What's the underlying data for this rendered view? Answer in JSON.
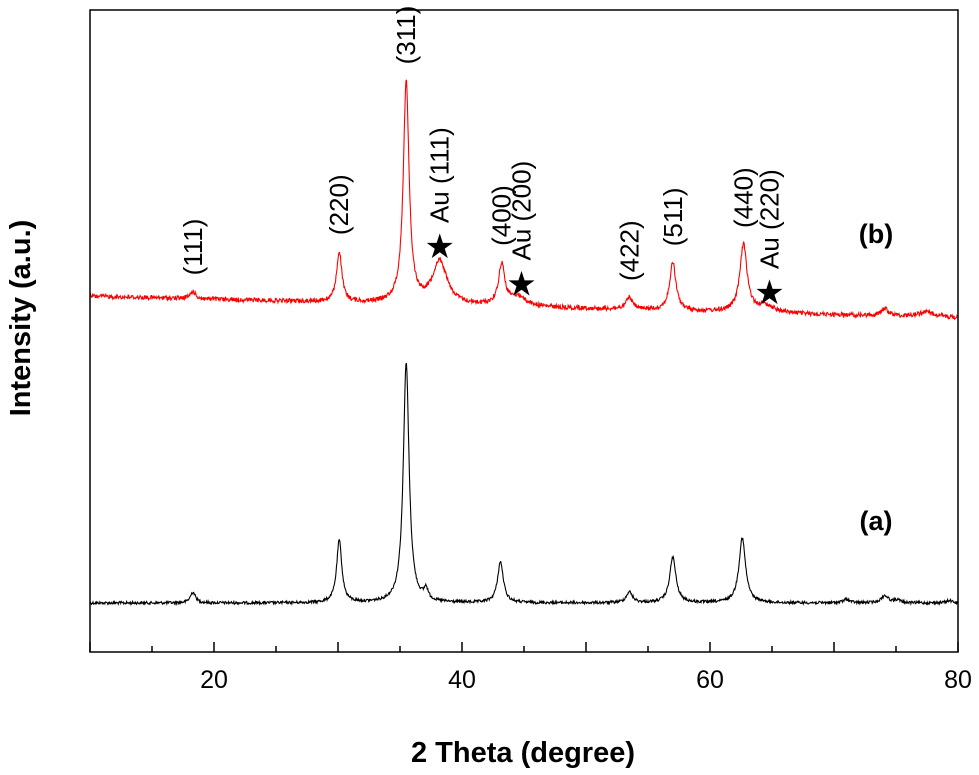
{
  "chart_data": {
    "type": "line",
    "xlabel": "2 Theta (degree)",
    "ylabel": "Intensity (a.u.)",
    "xlim": [
      10,
      80
    ],
    "xticks": [
      20,
      40,
      60,
      80
    ],
    "yaxis_ticks": false,
    "grid": false,
    "series": [
      {
        "name": "(a)",
        "color": "#000000",
        "baseline": 0.0,
        "peaks": [
          {
            "x": 18.3,
            "h": 0.045,
            "w": 0.25
          },
          {
            "x": 30.1,
            "h": 0.26,
            "w": 0.25
          },
          {
            "x": 35.5,
            "h": 1.0,
            "w": 0.28
          },
          {
            "x": 37.1,
            "h": 0.045,
            "w": 0.2
          },
          {
            "x": 43.1,
            "h": 0.17,
            "w": 0.28
          },
          {
            "x": 53.5,
            "h": 0.045,
            "w": 0.3
          },
          {
            "x": 57.0,
            "h": 0.19,
            "w": 0.3
          },
          {
            "x": 62.6,
            "h": 0.27,
            "w": 0.32
          },
          {
            "x": 71.0,
            "h": 0.015,
            "w": 0.3
          },
          {
            "x": 74.1,
            "h": 0.03,
            "w": 0.35
          },
          {
            "x": 75.1,
            "h": 0.012,
            "w": 0.3
          },
          {
            "x": 79.3,
            "h": 0.01,
            "w": 0.3
          }
        ]
      },
      {
        "name": "(b)",
        "color": "#ff0000",
        "baseline": 1.02,
        "baseline_slope": -0.0013,
        "peaks": [
          {
            "x": 18.3,
            "h": 0.03,
            "w": 0.25
          },
          {
            "x": 30.1,
            "h": 0.21,
            "w": 0.25
          },
          {
            "x": 35.5,
            "h": 0.92,
            "w": 0.28
          },
          {
            "x": 38.2,
            "h": 0.18,
            "w": 0.7
          },
          {
            "x": 43.2,
            "h": 0.17,
            "w": 0.3
          },
          {
            "x": 44.5,
            "h": 0.04,
            "w": 0.8
          },
          {
            "x": 53.5,
            "h": 0.05,
            "w": 0.3
          },
          {
            "x": 57.0,
            "h": 0.2,
            "w": 0.3
          },
          {
            "x": 62.7,
            "h": 0.28,
            "w": 0.35
          },
          {
            "x": 64.5,
            "h": 0.03,
            "w": 0.8
          },
          {
            "x": 74.1,
            "h": 0.03,
            "w": 0.35
          },
          {
            "x": 77.5,
            "h": 0.02,
            "w": 1.0
          }
        ]
      }
    ],
    "annotations": [
      {
        "text": "(111)",
        "x": 18.3,
        "rotated": true
      },
      {
        "text": "(220)",
        "x": 30.1,
        "rotated": true
      },
      {
        "text": "(311)",
        "x": 35.5,
        "rotated": true
      },
      {
        "text": "Au (111)",
        "x": 38.2,
        "rotated": true,
        "star": true
      },
      {
        "text": "(400)",
        "x": 43.2,
        "rotated": true
      },
      {
        "text": "Au (200)",
        "x": 44.8,
        "rotated": true,
        "star": true
      },
      {
        "text": "(422)",
        "x": 53.5,
        "rotated": true
      },
      {
        "text": "(511)",
        "x": 57.0,
        "rotated": true
      },
      {
        "text": "(440)",
        "x": 62.7,
        "rotated": true
      },
      {
        "text": "Au (220)",
        "x": 64.8,
        "rotated": true,
        "star": true
      }
    ],
    "series_labels": [
      {
        "text": "(b)",
        "series": 1
      },
      {
        "text": "(a)",
        "series": 0
      }
    ]
  }
}
